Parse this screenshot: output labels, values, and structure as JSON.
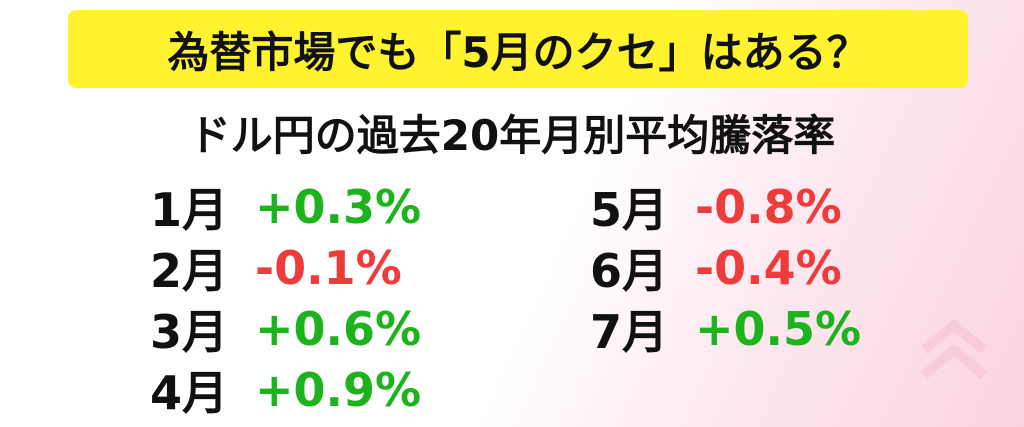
{
  "header": {
    "title": "為替市場でも「5月のクセ」はある？",
    "subtitle": "ドル円の過去20年月別平均騰落率"
  },
  "columns": [
    [
      {
        "month": "1月",
        "change": "+0.3%",
        "color": "#1db31d"
      },
      {
        "month": "2月",
        "change": "-0.1%",
        "color": "#ee3b3b"
      },
      {
        "month": "3月",
        "change": "+0.6%",
        "color": "#1db31d"
      },
      {
        "month": "4月",
        "change": "+0.9%",
        "color": "#1db31d"
      }
    ],
    [
      {
        "month": "5月",
        "change": "-0.8%",
        "color": "#ee3b3b"
      },
      {
        "month": "6月",
        "change": "-0.4%",
        "color": "#ee3b3b"
      },
      {
        "month": "7月",
        "change": "+0.5%",
        "color": "#1db31d"
      }
    ]
  ]
}
